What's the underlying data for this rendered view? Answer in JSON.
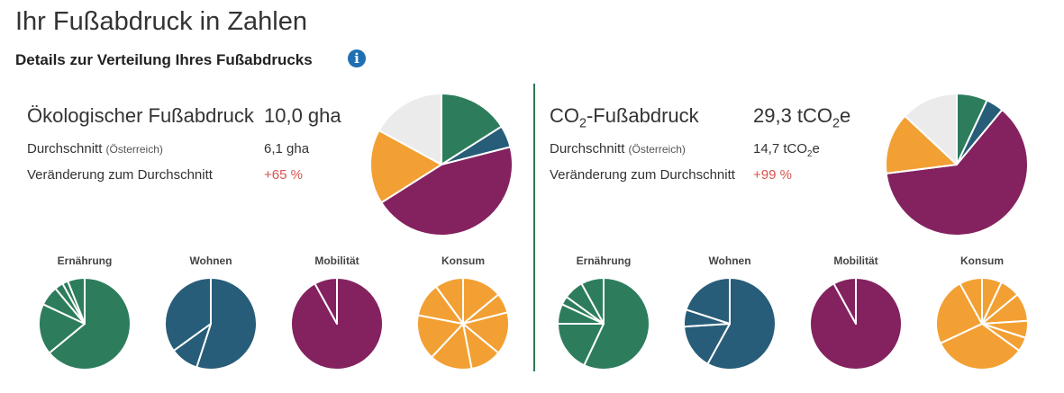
{
  "header": {
    "title": "Ihr Fußabdruck in Zahlen",
    "subtitle": "Details zur Verteilung Ihres Fußabdrucks",
    "info_icon": "info-icon"
  },
  "colors": {
    "ernaehrung": "#2d7d5c",
    "wohnen": "#275d78",
    "mobilitaet": "#842260",
    "konsum": "#f2a033",
    "rest": "#ebebeb",
    "divider": "#2a7a52",
    "negative": "#d9534f"
  },
  "eco": {
    "title": "Ökologischer Fußabdruck",
    "value": "10,0 gha",
    "avg_label": "Durchschnitt",
    "avg_note": "(Österreich)",
    "avg_value": "6,1 gha",
    "change_label": "Veränderung zum Durchschnitt",
    "change_value": "+65 %"
  },
  "co2": {
    "title_pre": "CO",
    "title_sub": "2",
    "title_post": "-Fußabdruck",
    "value_pre": "29,3 tCO",
    "value_sub": "2",
    "value_post": "e",
    "avg_label": "Durchschnitt",
    "avg_note": "(Österreich)",
    "avg_value_pre": "14,7 tCO",
    "avg_value_sub": "2",
    "avg_value_post": "e",
    "change_label": "Veränderung zum Durchschnitt",
    "change_value": "+99 %"
  },
  "categories": {
    "ernaehrung": "Ernährung",
    "wohnen": "Wohnen",
    "mobilitaet": "Mobilität",
    "konsum": "Konsum"
  },
  "chart_data": [
    {
      "type": "pie",
      "title": "Ökologischer Fußabdruck",
      "slices": [
        {
          "category": "Ernährung",
          "value": 16,
          "color": "#2d7d5c"
        },
        {
          "category": "Wohnen",
          "value": 5,
          "color": "#275d78"
        },
        {
          "category": "Mobilität",
          "value": 45,
          "color": "#842260"
        },
        {
          "category": "Konsum",
          "value": 17,
          "color": "#f2a033"
        },
        {
          "category": "",
          "value": 17,
          "color": "#ebebeb"
        }
      ]
    },
    {
      "type": "pie",
      "title": "CO2-Fußabdruck",
      "slices": [
        {
          "category": "Ernährung",
          "value": 7,
          "color": "#2d7d5c"
        },
        {
          "category": "Wohnen",
          "value": 4,
          "color": "#275d78"
        },
        {
          "category": "Mobilität",
          "value": 62,
          "color": "#842260"
        },
        {
          "category": "Konsum",
          "value": 14,
          "color": "#f2a033"
        },
        {
          "category": "",
          "value": 13,
          "color": "#ebebeb"
        }
      ]
    },
    {
      "type": "pie",
      "title": "Ernährung",
      "color": "#2d7d5c",
      "values": [
        64,
        18,
        7,
        3,
        2,
        6
      ]
    },
    {
      "type": "pie",
      "title": "Wohnen",
      "color": "#275d78",
      "values": [
        55,
        10,
        35
      ]
    },
    {
      "type": "pie",
      "title": "Mobilität",
      "color": "#842260",
      "values": [
        92,
        8
      ]
    },
    {
      "type": "pie",
      "title": "Konsum",
      "color": "#f2a033",
      "values": [
        14,
        7,
        15,
        11,
        15,
        16,
        12,
        10
      ]
    },
    {
      "type": "pie",
      "title": "Ernährung",
      "color": "#2d7d5c",
      "values": [
        57,
        18,
        7,
        3,
        7,
        8
      ]
    },
    {
      "type": "pie",
      "title": "Wohnen",
      "color": "#275d78",
      "values": [
        58,
        16,
        6,
        20
      ]
    },
    {
      "type": "pie",
      "title": "Mobilität",
      "color": "#842260",
      "values": [
        92,
        8
      ]
    },
    {
      "type": "pie",
      "title": "Konsum",
      "color": "#f2a033",
      "values": [
        7,
        7,
        10,
        6,
        5,
        33,
        24,
        8
      ]
    }
  ]
}
